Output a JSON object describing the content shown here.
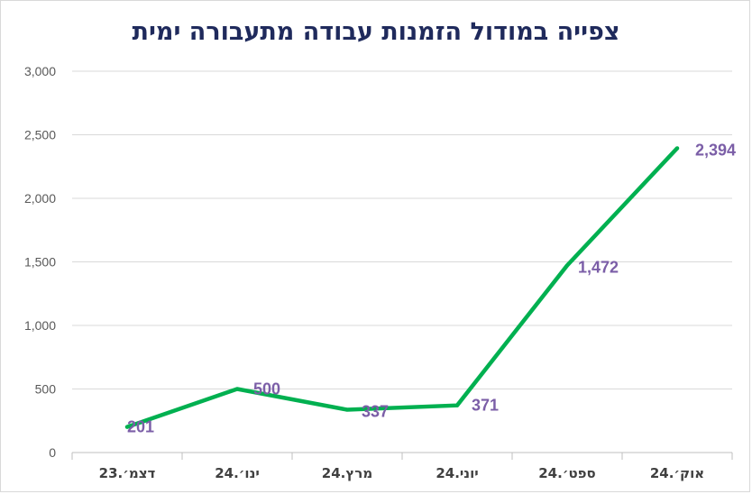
{
  "chart_data": {
    "type": "line",
    "title": "צפייה במודול הזמנות עבודה מתעבורה ימית",
    "categories": [
      "דצמ׳.23",
      "ינו׳.24",
      "מרץ.24",
      "יוני.24",
      "ספט׳.24",
      "אוק׳.24"
    ],
    "series": [
      {
        "values": [
          201,
          500,
          337,
          371,
          1472,
          2394
        ]
      }
    ],
    "data_labels": [
      "201",
      "500",
      "337",
      "371",
      "1,472",
      "2,394"
    ],
    "y_ticks": [
      "0",
      "500",
      "1,000",
      "1,500",
      "2,000",
      "2,500",
      "3,000"
    ],
    "ylim": [
      0,
      3000
    ],
    "grid": true,
    "legend": "none",
    "colors": {
      "line": "#00b050",
      "labels": "#7b5ea7",
      "grid": "#d9d9d9",
      "title": "#1f2a5c"
    }
  }
}
